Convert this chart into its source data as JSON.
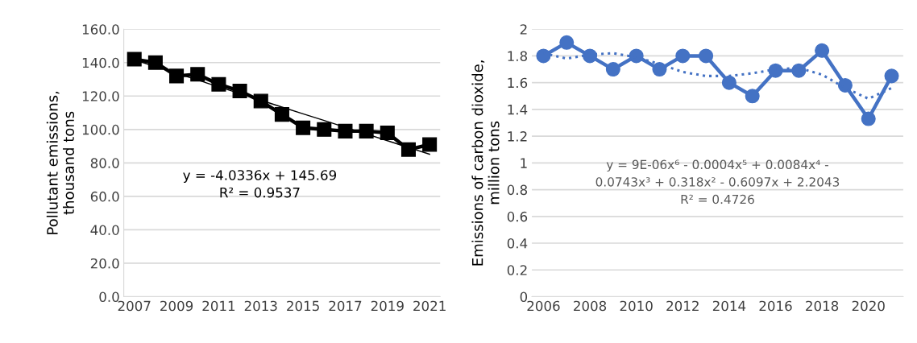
{
  "chart_data": [
    {
      "type": "line",
      "ylabel": "Pollutant emissions,\nthousand tons",
      "categories": [
        "2007",
        null,
        "2009",
        null,
        "2011",
        null,
        "2013",
        null,
        "2015",
        null,
        "2017",
        null,
        "2019",
        null,
        "2021"
      ],
      "series": [
        {
          "color": "#000000",
          "marker": "square",
          "line_style": "solid",
          "values": [
            142,
            140,
            132,
            133,
            127,
            123,
            117,
            109,
            101,
            100,
            99,
            99,
            98,
            88,
            91
          ]
        },
        {
          "type": "line",
          "color": "#000000",
          "marker": "none",
          "line_style": "solid",
          "values": [
            141.7,
            137.6,
            133.6,
            129.6,
            125.5,
            121.5,
            117.5,
            113.4,
            109.4,
            105.4,
            101.3,
            97.3,
            93.3,
            89.2,
            85.2
          ]
        }
      ],
      "ylim": [
        0,
        160
      ],
      "yticks": [
        {
          "value": 0,
          "label": "0.0"
        },
        {
          "value": 20,
          "label": "20.0"
        },
        {
          "value": 40,
          "label": "40.0"
        },
        {
          "value": 60,
          "label": "60.0"
        },
        {
          "value": 80,
          "label": "80.0"
        },
        {
          "value": 100,
          "label": "100.0"
        },
        {
          "value": 120,
          "label": "120.0"
        },
        {
          "value": 140,
          "label": "140.0"
        },
        {
          "value": 160,
          "label": "160.0"
        }
      ],
      "grid": "y",
      "legend": false,
      "annotations": [
        "y = -4.0336x + 145.69",
        "R² = 0.9537"
      ]
    },
    {
      "type": "line",
      "ylabel": "Emissions of carbon dioxide,\nmillion tons",
      "categories": [
        "2006",
        null,
        "2008",
        null,
        "2010",
        null,
        "2012",
        null,
        "2014",
        null,
        "2016",
        null,
        "2018",
        null,
        "2020",
        null
      ],
      "series": [
        {
          "color": "#4472c4",
          "marker": "circle",
          "line_style": "solid",
          "values": [
            1.8,
            1.9,
            1.8,
            1.7,
            1.8,
            1.7,
            1.8,
            1.8,
            1.6,
            1.5,
            1.69,
            1.69,
            1.84,
            1.58,
            1.33,
            1.65
          ]
        },
        {
          "type": "line",
          "color": "#4472c4",
          "marker": "none",
          "line_style": "dotted",
          "values": [
            1.82,
            1.78,
            1.81,
            1.82,
            1.79,
            1.74,
            1.68,
            1.65,
            1.65,
            1.67,
            1.7,
            1.71,
            1.66,
            1.56,
            1.48,
            1.56
          ]
        }
      ],
      "ylim": [
        0,
        2
      ],
      "yticks": [
        0,
        0.2,
        0.4,
        0.6,
        0.8,
        1,
        1.2,
        1.4,
        1.6,
        1.8,
        2
      ],
      "grid": "y",
      "legend": false,
      "annotations": [
        "y = 9E-06x⁶ - 0.0004x⁵ + 0.0084x⁴ -",
        "0.0743x³ + 0.318x² - 0.6097x + 2.2043",
        "R² = 0.4726"
      ]
    }
  ]
}
